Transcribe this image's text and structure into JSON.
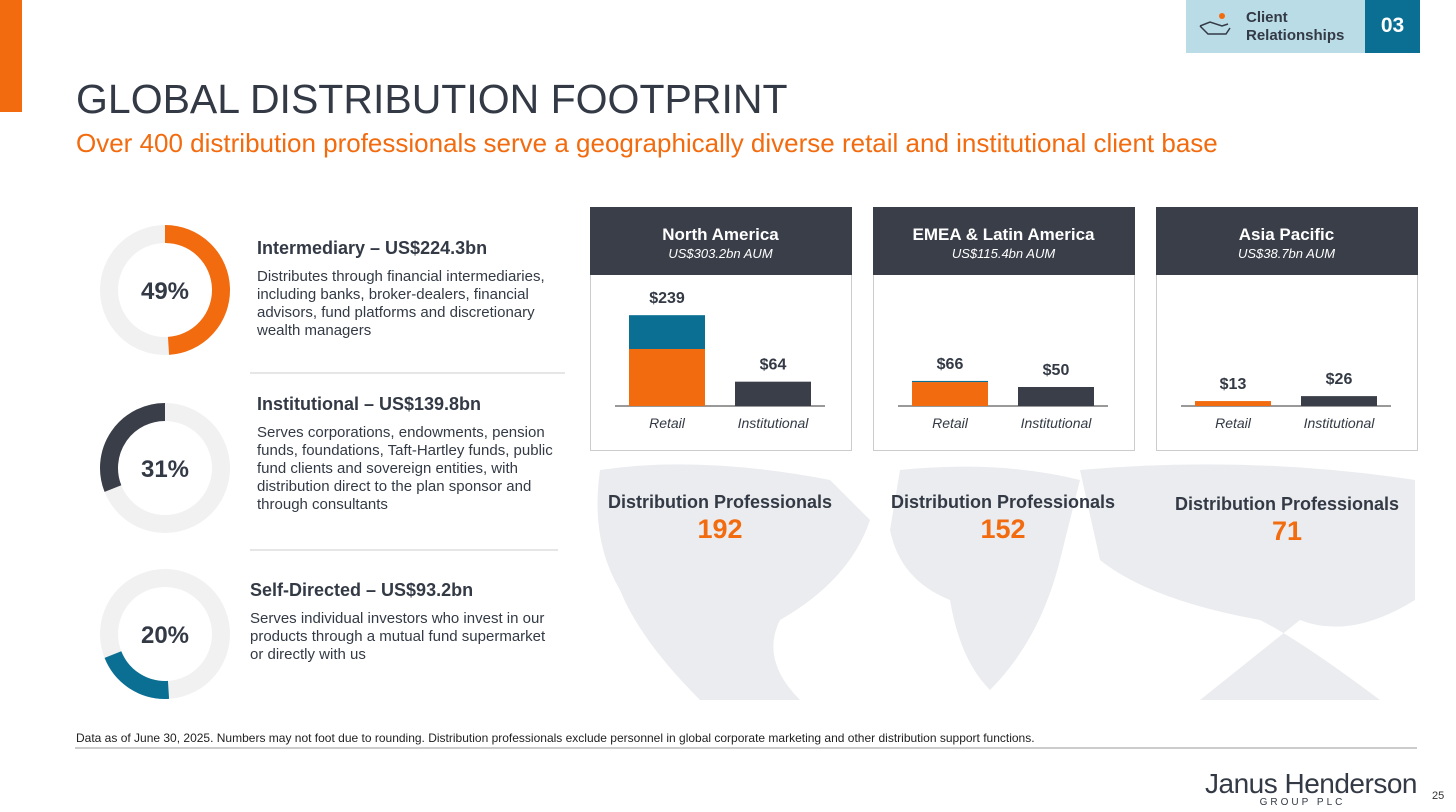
{
  "header": {
    "section_label": "Client Relationships",
    "section_number": "03",
    "title": "GLOBAL DISTRIBUTION FOOTPRINT",
    "subtitle": "Over 400 distribution professionals serve a geographically diverse retail and institutional client base"
  },
  "segments": [
    {
      "heading": "Intermediary – US$224.3bn",
      "body": "Distributes through financial intermediaries, including banks, broker-dealers, financial advisors, fund platforms and discretionary wealth managers"
    },
    {
      "heading": "Institutional – US$139.8bn",
      "body": "Serves corporations, endowments, pension funds, foundations, Taft-Hartley funds, public fund clients and sovereign entities, with distribution direct to the plan sponsor and through consultants"
    },
    {
      "heading": "Self-Directed – US$93.2bn",
      "body": "Serves individual investors who invest in our products through a mutual fund supermarket or directly with us"
    }
  ],
  "regions": [
    {
      "name": "North America",
      "aum": "US$303.2bn AUM",
      "professionals_label": "Distribution Professionals",
      "professionals": "192"
    },
    {
      "name": "EMEA & Latin America",
      "aum": "US$115.4bn AUM",
      "professionals_label": "Distribution Professionals",
      "professionals": "152"
    },
    {
      "name": "Asia Pacific",
      "aum": "US$38.7bn AUM",
      "professionals_label": "Distribution Professionals",
      "professionals": "71"
    }
  ],
  "footnote": "Data as of June 30, 2025. Numbers may not foot due to rounding. Distribution professionals exclude personnel in global corporate marketing and other distribution support functions.",
  "logo": {
    "name": "Janus Henderson",
    "sub": "GROUP PLC"
  },
  "page_number": "25",
  "chart_data": [
    {
      "type": "donut",
      "values": [
        49
      ],
      "value_labels": [
        "49%"
      ],
      "color": "#f26b0f"
    },
    {
      "type": "donut",
      "values": [
        31
      ],
      "value_labels": [
        "31%"
      ],
      "color": "#3a3e48"
    },
    {
      "type": "donut",
      "values": [
        20
      ],
      "value_labels": [
        "20%"
      ],
      "color": "#0b6f94"
    },
    {
      "type": "bar",
      "categories": [
        "Retail",
        "Institutional"
      ],
      "ylim": [
        0,
        300
      ],
      "series": [
        {
          "color": "#f26b0f",
          "values": [
            150,
            null
          ]
        },
        {
          "color": "#0b6f94",
          "values": [
            89,
            null
          ]
        },
        {
          "color": "#3a3e48",
          "values": [
            null,
            64
          ]
        }
      ],
      "totals": [
        239,
        64
      ],
      "total_labels": [
        "$239",
        "$64"
      ]
    },
    {
      "type": "bar",
      "categories": [
        "Retail",
        "Institutional"
      ],
      "ylim": [
        0,
        300
      ],
      "series": [
        {
          "color": "#f26b0f",
          "values": [
            63,
            null
          ]
        },
        {
          "color": "#0b6f94",
          "values": [
            3,
            null
          ]
        },
        {
          "color": "#3a3e48",
          "values": [
            null,
            50
          ]
        }
      ],
      "totals": [
        66,
        50
      ],
      "total_labels": [
        "$66",
        "$50"
      ]
    },
    {
      "type": "bar",
      "categories": [
        "Retail",
        "Institutional"
      ],
      "ylim": [
        0,
        300
      ],
      "series": [
        {
          "color": "#f26b0f",
          "values": [
            13,
            null
          ]
        },
        {
          "color": "#3a3e48",
          "values": [
            null,
            26
          ]
        }
      ],
      "totals": [
        13,
        26
      ],
      "total_labels": [
        "$13",
        "$26"
      ]
    }
  ]
}
